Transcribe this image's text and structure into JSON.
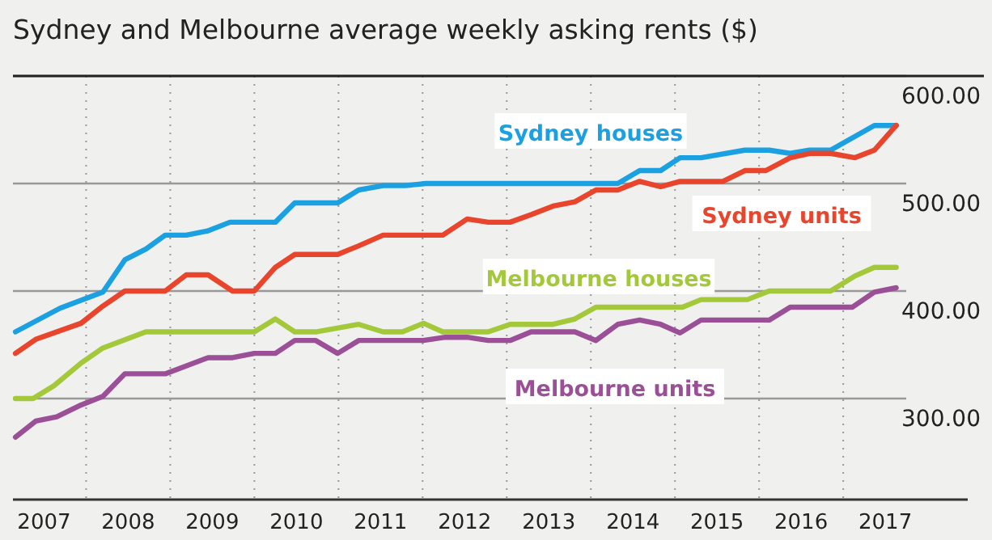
{
  "chart_data": {
    "type": "line",
    "title": "Sydney and Melbourne average weekly asking rents ($)",
    "xlim": [
      2007.13,
      2018.48
    ],
    "xticks": [
      {
        "value": 2007.5,
        "label": "2007"
      },
      {
        "value": 2008.5,
        "label": "2008"
      },
      {
        "value": 2009.5,
        "label": "2009"
      },
      {
        "value": 2010.5,
        "label": "2010"
      },
      {
        "value": 2011.5,
        "label": "2011"
      },
      {
        "value": 2012.5,
        "label": "2012"
      },
      {
        "value": 2013.5,
        "label": "2013"
      },
      {
        "value": 2014.5,
        "label": "2014"
      },
      {
        "value": 2015.5,
        "label": "2015"
      },
      {
        "value": 2016.5,
        "label": "2016"
      },
      {
        "value": 2017.5,
        "label": "2017"
      },
      {
        "value": 2008,
        "label": null
      },
      {
        "value": 2009,
        "label": null
      },
      {
        "value": 2010,
        "label": null
      },
      {
        "value": 2011,
        "label": null
      },
      {
        "value": 2012,
        "label": null
      },
      {
        "value": 2013,
        "label": null
      },
      {
        "value": 2014,
        "label": null
      },
      {
        "value": 2015,
        "label": null
      },
      {
        "value": 2016,
        "label": null
      },
      {
        "value": 2017,
        "label": null
      }
    ],
    "ylim": [
      206,
      600
    ],
    "yticks": [
      {
        "value": 300,
        "label": "300.00"
      },
      {
        "value": 400,
        "label": "400.00"
      },
      {
        "value": 500,
        "label": "500.00"
      },
      {
        "value": 600,
        "label": "600.00"
      }
    ],
    "grid": true,
    "marker": "none",
    "line_style": "solid",
    "series": [
      {
        "name": "Sydney houses",
        "color": "#1ba1e2",
        "x": [
          2007.16,
          2007.69,
          2008.2,
          2008.46,
          2008.71,
          2008.94,
          2009.19,
          2009.45,
          2009.71,
          2010.25,
          2010.48,
          2010.99,
          2011.24,
          2011.53,
          2011.79,
          2012.04,
          2014.32,
          2014.58,
          2014.83,
          2015.06,
          2015.31,
          2015.83,
          2016.12,
          2016.37,
          2016.6,
          2016.85,
          2017.37,
          2017.63
        ],
        "values": [
          362,
          384,
          399,
          429,
          439,
          452,
          452,
          456,
          464,
          464,
          482,
          482,
          494,
          498,
          498,
          500,
          500,
          512,
          512,
          524,
          524,
          531,
          531,
          528,
          531,
          531,
          554,
          554
        ]
      },
      {
        "name": "Sydney units",
        "color": "#e8452c",
        "x": [
          2007.16,
          2007.4,
          2007.94,
          2008.2,
          2008.46,
          2008.94,
          2009.19,
          2009.45,
          2009.74,
          2010.0,
          2010.25,
          2010.48,
          2010.99,
          2011.24,
          2011.53,
          2012.24,
          2012.53,
          2012.78,
          2013.04,
          2013.29,
          2013.55,
          2013.81,
          2014.06,
          2014.32,
          2014.58,
          2014.83,
          2015.06,
          2015.57,
          2015.83,
          2016.08,
          2016.37,
          2016.6,
          2016.85,
          2017.14,
          2017.37,
          2017.63
        ],
        "values": [
          342,
          355,
          370,
          386,
          400,
          400,
          415,
          415,
          400,
          400,
          422,
          434,
          434,
          442,
          452,
          452,
          467,
          464,
          464,
          471,
          479,
          483,
          494,
          494,
          502,
          497,
          502,
          502,
          512,
          512,
          524,
          528,
          528,
          524,
          531,
          554
        ]
      },
      {
        "name": "Melbourne houses",
        "color": "#a3c93a",
        "x": [
          2007.16,
          2007.37,
          2007.62,
          2007.94,
          2008.2,
          2008.71,
          2010.0,
          2010.25,
          2010.48,
          2010.73,
          2011.24,
          2011.53,
          2011.76,
          2012.01,
          2012.24,
          2012.78,
          2013.04,
          2013.55,
          2013.81,
          2014.06,
          2015.09,
          2015.31,
          2015.86,
          2016.12,
          2016.85,
          2017.14,
          2017.37,
          2017.63
        ],
        "values": [
          300,
          300,
          312,
          333,
          347,
          362,
          362,
          374,
          362,
          362,
          369,
          362,
          362,
          370,
          362,
          362,
          369,
          369,
          374,
          385,
          385,
          392,
          392,
          400,
          400,
          414,
          422,
          422
        ]
      },
      {
        "name": "Melbourne units",
        "color": "#9b4f96",
        "x": [
          2007.16,
          2007.4,
          2007.65,
          2007.94,
          2008.2,
          2008.46,
          2008.94,
          2009.45,
          2009.74,
          2010.0,
          2010.25,
          2010.48,
          2010.73,
          2010.99,
          2011.24,
          2012.01,
          2012.27,
          2012.53,
          2012.78,
          2013.04,
          2013.29,
          2013.81,
          2014.06,
          2014.32,
          2014.58,
          2014.83,
          2015.06,
          2015.31,
          2016.12,
          2016.37,
          2017.11,
          2017.37,
          2017.63
        ],
        "values": [
          264,
          279,
          283,
          294,
          302,
          323,
          323,
          338,
          338,
          342,
          342,
          354,
          354,
          342,
          354,
          354,
          357,
          357,
          354,
          354,
          362,
          362,
          354,
          369,
          373,
          369,
          361,
          373,
          373,
          385,
          385,
          399,
          403
        ]
      }
    ]
  }
}
